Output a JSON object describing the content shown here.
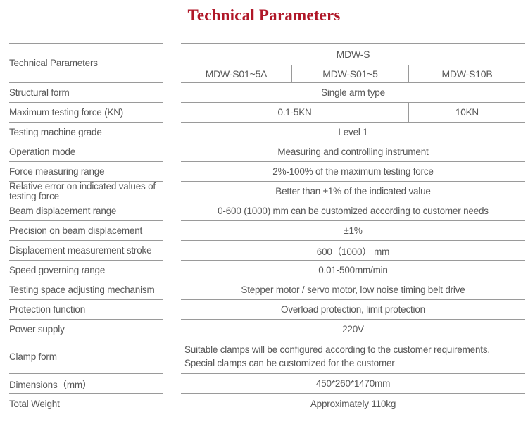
{
  "title": "Technical Parameters",
  "colors": {
    "title_accent": "#b01728",
    "body_text": "#575757",
    "table_line": "#9a9a9a",
    "background": "#ffffff"
  },
  "table": {
    "header": {
      "left_label": "Technical Parameters",
      "series": "MDW-S",
      "models": [
        "MDW-S01~5A",
        "MDW-S01~5",
        "MDW-S10B"
      ]
    },
    "rows": [
      {
        "label": "Structural form",
        "value": "Single arm type"
      },
      {
        "label": "Maximum testing force (KN)",
        "value": "0.1-5KN",
        "value2": "10KN"
      },
      {
        "label": "Testing machine grade",
        "value": "Level 1"
      },
      {
        "label": "Operation mode",
        "value": "Measuring and controlling instrument"
      },
      {
        "label": "Force measuring range",
        "value": "2%-100% of the maximum testing force"
      },
      {
        "label": "Relative error on indicated values of testing force",
        "value": "Better than ±1% of the indicated value"
      },
      {
        "label": "Beam displacement range",
        "value": "0-600 (1000) mm can be customized according to customer needs"
      },
      {
        "label": "Precision on beam displacement",
        "value": "±1%"
      },
      {
        "label": "Displacement measurement stroke",
        "value": "600（1000） mm"
      },
      {
        "label": "Speed governing range",
        "value": "0.01-500mm/min"
      },
      {
        "label": "Testing space adjusting mechanism",
        "value": "Stepper motor / servo motor, low noise timing belt drive"
      },
      {
        "label": "Protection function",
        "value": "Overload protection, limit protection"
      },
      {
        "label": "Power supply",
        "value": "220V"
      },
      {
        "label": "Clamp form",
        "value_line1": "Suitable clamps will be configured according to the customer requirements.",
        "value_line2": "Special clamps can be customized for the customer"
      },
      {
        "label": "Dimensions（mm）",
        "value": "450*260*1470mm"
      },
      {
        "label": "Total Weight",
        "value": "Approximately 110kg"
      }
    ]
  }
}
